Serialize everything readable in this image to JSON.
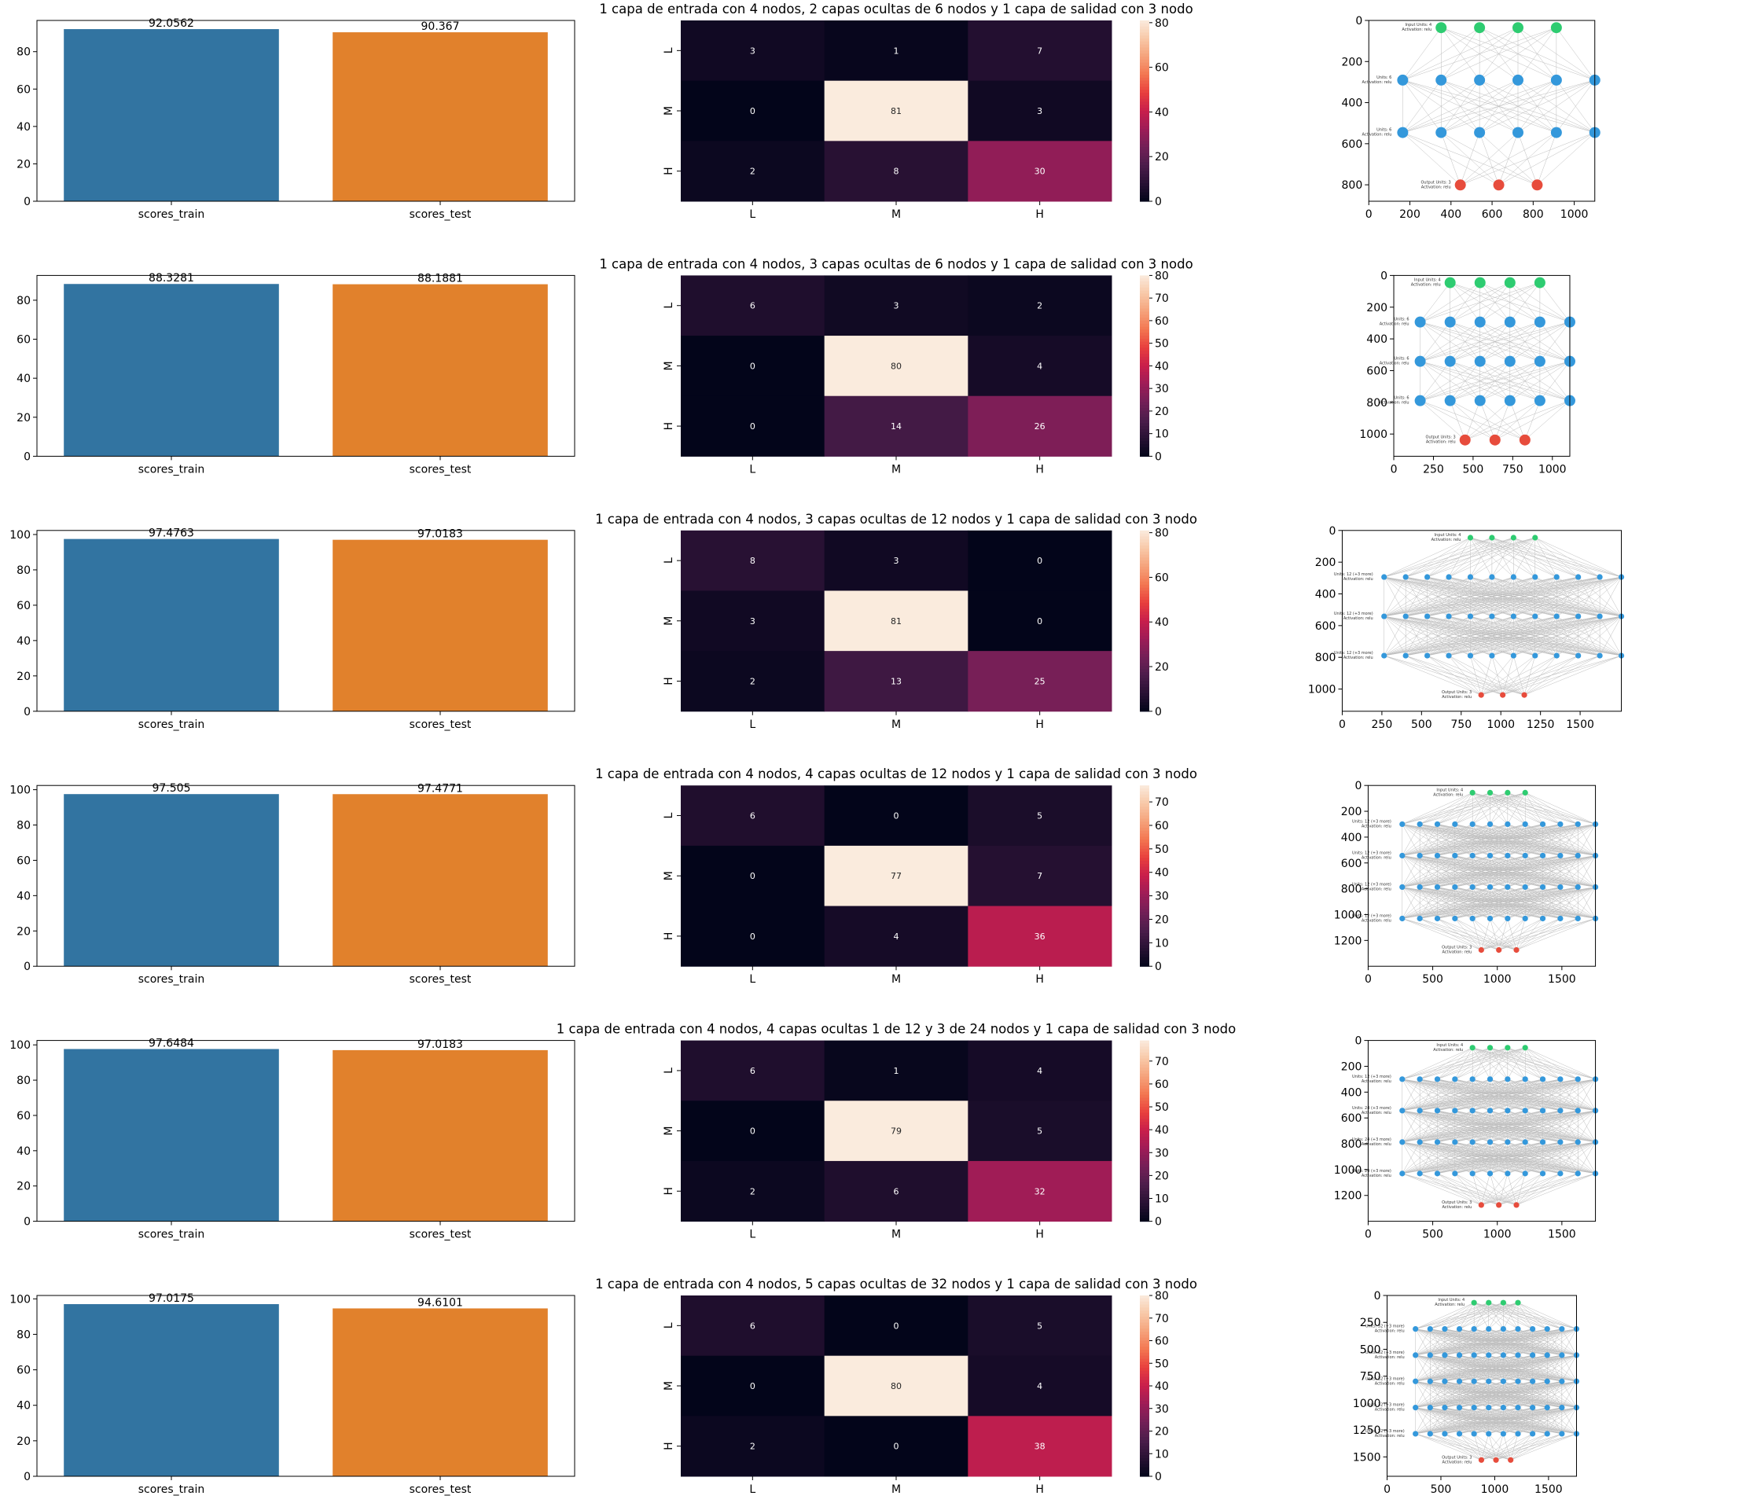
{
  "chart_data": [
    {
      "type": "bar",
      "categories": [
        "scores_train",
        "scores_test"
      ],
      "values": [
        92.0562,
        90.367
      ],
      "data_labels": [
        "92.0562",
        "90.367"
      ],
      "colors": [
        "#3274a1",
        "#e1812c"
      ],
      "ylim": [
        0,
        96.7
      ],
      "yticks": [
        0,
        20,
        40,
        60,
        80
      ]
    },
    {
      "type": "heatmap",
      "title": "1 capa de entrada con 4 nodos, 2 capas ocultas de 6 nodos y 1 capa de salidad con 3 nodo",
      "row_labels": [
        "L",
        "M",
        "H"
      ],
      "col_labels": [
        "L",
        "M",
        "H"
      ],
      "values": [
        [
          3,
          1,
          7
        ],
        [
          0,
          81,
          3
        ],
        [
          2,
          8,
          30
        ]
      ],
      "vmin": 0,
      "vmax": 81,
      "colorbar_ticks": [
        0,
        20,
        40,
        60,
        80
      ]
    },
    {
      "type": "scatter",
      "layers": [
        {
          "label": "Input Units: 4\nActivation: relu",
          "nodes": 4,
          "color": "#2ecc71"
        },
        {
          "label": "Units: 6\nActivation: relu",
          "nodes": 6,
          "color": "#3498db"
        },
        {
          "label": "Units: 6\nActivation: relu",
          "nodes": 6,
          "color": "#3498db"
        },
        {
          "label": "Output Units: 3\nActivation: relu",
          "nodes": 3,
          "color": "#e74c3c"
        }
      ],
      "xlim": [
        0,
        1100
      ],
      "ylim": [
        880,
        0
      ],
      "xticks": [
        0,
        200,
        400,
        600,
        800,
        1000
      ],
      "yticks": [
        0,
        200,
        400,
        600,
        800
      ]
    },
    {
      "type": "bar",
      "categories": [
        "scores_train",
        "scores_test"
      ],
      "values": [
        88.3281,
        88.1881
      ],
      "data_labels": [
        "88.3281",
        "88.1881"
      ],
      "colors": [
        "#3274a1",
        "#e1812c"
      ],
      "ylim": [
        0,
        92.7
      ],
      "yticks": [
        0,
        20,
        40,
        60,
        80
      ]
    },
    {
      "type": "heatmap",
      "title": "1 capa de entrada con 4 nodos, 3 capas ocultas de 6 nodos y 1 capa de salidad con 3 nodo",
      "row_labels": [
        "L",
        "M",
        "H"
      ],
      "col_labels": [
        "L",
        "M",
        "H"
      ],
      "values": [
        [
          6,
          3,
          2
        ],
        [
          0,
          80,
          4
        ],
        [
          0,
          14,
          26
        ]
      ],
      "vmin": 0,
      "vmax": 80,
      "colorbar_ticks": [
        0,
        10,
        20,
        30,
        40,
        50,
        60,
        70,
        80
      ]
    },
    {
      "type": "scatter",
      "layers": [
        {
          "label": "Input Units: 4\nActivation: relu",
          "nodes": 4,
          "color": "#2ecc71"
        },
        {
          "label": "Units: 6\nActivation: relu",
          "nodes": 6,
          "color": "#3498db"
        },
        {
          "label": "Units: 6\nActivation: relu",
          "nodes": 6,
          "color": "#3498db"
        },
        {
          "label": "Units: 6\nActivation: relu",
          "nodes": 6,
          "color": "#3498db"
        },
        {
          "label": "Output Units: 3\nActivation: relu",
          "nodes": 3,
          "color": "#e74c3c"
        }
      ],
      "xlim": [
        0,
        1110
      ],
      "ylim": [
        1140,
        0
      ],
      "xticks": [
        0,
        250,
        500,
        750,
        1000
      ],
      "yticks": [
        0,
        200,
        400,
        600,
        800,
        1000
      ]
    },
    {
      "type": "bar",
      "categories": [
        "scores_train",
        "scores_test"
      ],
      "values": [
        97.4763,
        97.0183
      ],
      "data_labels": [
        "97.4763",
        "97.0183"
      ],
      "colors": [
        "#3274a1",
        "#e1812c"
      ],
      "ylim": [
        0,
        102.3
      ],
      "yticks": [
        0,
        20,
        40,
        60,
        80,
        100
      ]
    },
    {
      "type": "heatmap",
      "title": "1 capa de entrada con 4 nodos, 3 capas ocultas de 12 nodos y 1 capa de salidad con 3 nodo",
      "row_labels": [
        "L",
        "M",
        "H"
      ],
      "col_labels": [
        "L",
        "M",
        "H"
      ],
      "values": [
        [
          8,
          3,
          0
        ],
        [
          3,
          81,
          0
        ],
        [
          2,
          13,
          25
        ]
      ],
      "vmin": 0,
      "vmax": 81,
      "colorbar_ticks": [
        0,
        20,
        40,
        60,
        80
      ]
    },
    {
      "type": "scatter",
      "layers": [
        {
          "label": "Input Units: 4\nActivation: relu",
          "nodes": 4,
          "color": "#2ecc71"
        },
        {
          "label": "Units: 12 (+3 more)\nActivation: relu",
          "nodes": 12,
          "color": "#3498db"
        },
        {
          "label": "Units: 12 (+3 more)\nActivation: relu",
          "nodes": 12,
          "color": "#3498db"
        },
        {
          "label": "Units: 12 (+3 more)\nActivation: relu",
          "nodes": 12,
          "color": "#3498db"
        },
        {
          "label": "Output Units: 3\nActivation: relu",
          "nodes": 3,
          "color": "#e74c3c"
        }
      ],
      "xlim": [
        0,
        1760
      ],
      "ylim": [
        1140,
        0
      ],
      "xticks": [
        0,
        250,
        500,
        750,
        1000,
        1250,
        1500
      ],
      "yticks": [
        0,
        200,
        400,
        600,
        800,
        1000
      ]
    },
    {
      "type": "bar",
      "categories": [
        "scores_train",
        "scores_test"
      ],
      "values": [
        97.505,
        97.4771
      ],
      "data_labels": [
        "97.505",
        "97.4771"
      ],
      "colors": [
        "#3274a1",
        "#e1812c"
      ],
      "ylim": [
        0,
        102.4
      ],
      "yticks": [
        0,
        20,
        40,
        60,
        80,
        100
      ]
    },
    {
      "type": "heatmap",
      "title": "1 capa de entrada con 4 nodos, 4 capas ocultas de 12 nodos y 1 capa de salidad con 3 nodo",
      "row_labels": [
        "L",
        "M",
        "H"
      ],
      "col_labels": [
        "L",
        "M",
        "H"
      ],
      "values": [
        [
          6,
          0,
          5
        ],
        [
          0,
          77,
          7
        ],
        [
          0,
          4,
          36
        ]
      ],
      "vmin": 0,
      "vmax": 77,
      "colorbar_ticks": [
        0,
        10,
        20,
        30,
        40,
        50,
        60,
        70
      ]
    },
    {
      "type": "scatter",
      "layers": [
        {
          "label": "Input Units: 4\nActivation: relu",
          "nodes": 4,
          "color": "#2ecc71"
        },
        {
          "label": "Units: 12 (+3 more)\nActivation: relu",
          "nodes": 12,
          "color": "#3498db"
        },
        {
          "label": "Units: 12 (+3 more)\nActivation: relu",
          "nodes": 12,
          "color": "#3498db"
        },
        {
          "label": "Units: 12 (+3 more)\nActivation: relu",
          "nodes": 12,
          "color": "#3498db"
        },
        {
          "label": "Units: 12 (+3 more)\nActivation: relu",
          "nodes": 12,
          "color": "#3498db"
        },
        {
          "label": "Output Units: 3\nActivation: relu",
          "nodes": 3,
          "color": "#e74c3c"
        }
      ],
      "xlim": [
        0,
        1760
      ],
      "ylim": [
        1400,
        0
      ],
      "xticks": [
        0,
        500,
        1000,
        1500
      ],
      "yticks": [
        0,
        200,
        400,
        600,
        800,
        1000,
        1200
      ]
    },
    {
      "type": "bar",
      "categories": [
        "scores_train",
        "scores_test"
      ],
      "values": [
        97.6484,
        97.0183
      ],
      "data_labels": [
        "97.6484",
        "97.0183"
      ],
      "colors": [
        "#3274a1",
        "#e1812c"
      ],
      "ylim": [
        0,
        102.5
      ],
      "yticks": [
        0,
        20,
        40,
        60,
        80,
        100
      ]
    },
    {
      "type": "heatmap",
      "title": "1 capa de entrada con 4 nodos, 4 capas ocultas 1 de 12 y 3 de 24 nodos y 1 capa de salidad con 3 nodo",
      "row_labels": [
        "L",
        "M",
        "H"
      ],
      "col_labels": [
        "L",
        "M",
        "H"
      ],
      "values": [
        [
          6,
          1,
          4
        ],
        [
          0,
          79,
          5
        ],
        [
          2,
          6,
          32
        ]
      ],
      "vmin": 0,
      "vmax": 79,
      "colorbar_ticks": [
        0,
        10,
        20,
        30,
        40,
        50,
        60,
        70
      ]
    },
    {
      "type": "scatter",
      "layers": [
        {
          "label": "Input Units: 4\nActivation: relu",
          "nodes": 4,
          "color": "#2ecc71"
        },
        {
          "label": "Units: 12 (+3 more)\nActivation: relu",
          "nodes": 12,
          "color": "#3498db"
        },
        {
          "label": "Units: 24 (+3 more)\nActivation: relu",
          "nodes": 12,
          "color": "#3498db"
        },
        {
          "label": "Units: 24 (+3 more)\nActivation: relu",
          "nodes": 12,
          "color": "#3498db"
        },
        {
          "label": "Units: 24 (+3 more)\nActivation: relu",
          "nodes": 12,
          "color": "#3498db"
        },
        {
          "label": "Output Units: 3\nActivation: relu",
          "nodes": 3,
          "color": "#e74c3c"
        }
      ],
      "xlim": [
        0,
        1760
      ],
      "ylim": [
        1400,
        0
      ],
      "xticks": [
        0,
        500,
        1000,
        1500
      ],
      "yticks": [
        0,
        200,
        400,
        600,
        800,
        1000,
        1200
      ]
    },
    {
      "type": "bar",
      "categories": [
        "scores_train",
        "scores_test"
      ],
      "values": [
        97.0175,
        94.6101
      ],
      "data_labels": [
        "97.0175",
        "94.6101"
      ],
      "colors": [
        "#3274a1",
        "#e1812c"
      ],
      "ylim": [
        0,
        101.9
      ],
      "yticks": [
        0,
        20,
        40,
        60,
        80,
        100
      ]
    },
    {
      "type": "heatmap",
      "title": "1 capa de entrada con 4 nodos, 5 capas ocultas de 32 nodos y 1 capa de salidad con 3 nodo",
      "row_labels": [
        "L",
        "M",
        "H"
      ],
      "col_labels": [
        "L",
        "M",
        "H"
      ],
      "values": [
        [
          6,
          0,
          5
        ],
        [
          0,
          80,
          4
        ],
        [
          2,
          0,
          38
        ]
      ],
      "vmin": 0,
      "vmax": 80,
      "colorbar_ticks": [
        0,
        10,
        20,
        30,
        40,
        50,
        60,
        70,
        80
      ]
    },
    {
      "type": "scatter",
      "layers": [
        {
          "label": "Input Units: 4\nActivation: relu",
          "nodes": 4,
          "color": "#2ecc71"
        },
        {
          "label": "Units: 32 (+3 more)\nActivation: relu",
          "nodes": 12,
          "color": "#3498db"
        },
        {
          "label": "Units: 32 (+3 more)\nActivation: relu",
          "nodes": 12,
          "color": "#3498db"
        },
        {
          "label": "Units: 32 (+3 more)\nActivation: relu",
          "nodes": 12,
          "color": "#3498db"
        },
        {
          "label": "Units: 32 (+3 more)\nActivation: relu",
          "nodes": 12,
          "color": "#3498db"
        },
        {
          "label": "Units: 32 (+3 more)\nActivation: relu",
          "nodes": 12,
          "color": "#3498db"
        },
        {
          "label": "Output Units: 3\nActivation: relu",
          "nodes": 3,
          "color": "#e74c3c"
        }
      ],
      "xlim": [
        0,
        1760
      ],
      "ylim": [
        1680,
        0
      ],
      "xticks": [
        0,
        500,
        1000,
        1500
      ],
      "yticks": [
        0,
        250,
        500,
        750,
        1000,
        1250,
        1500
      ]
    }
  ]
}
